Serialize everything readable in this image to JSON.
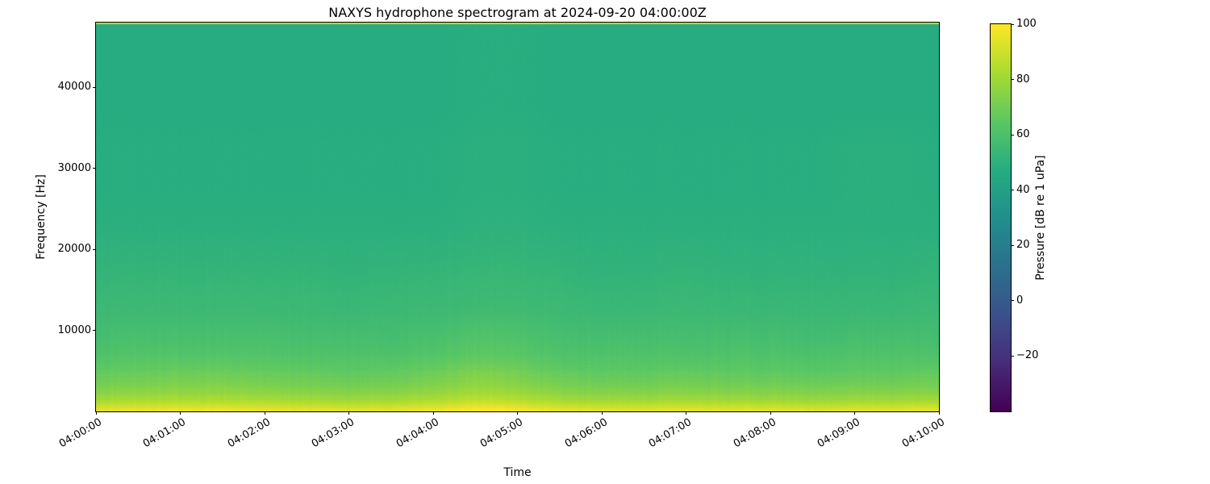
{
  "title": "NAXYS hydrophone spectrogram at 2024-09-20 04:00:00Z",
  "axes": {
    "xlabel": "Time",
    "ylabel": "Frequency [Hz]",
    "x_ticks": [
      "04:00:00",
      "04:01:00",
      "04:02:00",
      "04:03:00",
      "04:04:00",
      "04:05:00",
      "04:06:00",
      "04:07:00",
      "04:08:00",
      "04:09:00",
      "04:10:00"
    ],
    "y_ticks": {
      "values": [
        10000,
        20000,
        30000,
        40000
      ],
      "labels": [
        "10000",
        "20000",
        "30000",
        "40000"
      ]
    }
  },
  "colorbar": {
    "label": "Pressure [dB re 1 uPa]",
    "colormap": "viridis",
    "vmin": -40,
    "vmax": 100,
    "ticks": {
      "values": [
        100,
        80,
        60,
        40,
        20,
        0,
        -20
      ],
      "labels": [
        "100",
        "80",
        "60",
        "40",
        "20",
        "0",
        "−20"
      ]
    }
  },
  "chart_data": {
    "type": "heatmap",
    "subtype": "spectrogram",
    "title": "NAXYS hydrophone spectrogram at 2024-09-20 04:00:00Z",
    "xlabel": "Time",
    "ylabel": "Frequency [Hz]",
    "colormap": "viridis",
    "vmin": -40,
    "vmax": 100,
    "ylim": [
      0,
      48000
    ],
    "rows_order": "bottom-to-top",
    "top_edge_db": 86,
    "x": [
      "04:00:00",
      "04:00:30",
      "04:01:00",
      "04:01:30",
      "04:02:00",
      "04:02:30",
      "04:03:00",
      "04:03:30",
      "04:04:00",
      "04:04:30",
      "04:05:00",
      "04:05:30",
      "04:06:00",
      "04:06:30",
      "04:07:00",
      "04:07:30",
      "04:08:00",
      "04:08:30",
      "04:09:00",
      "04:09:30",
      "04:10:00"
    ],
    "y_hz": [
      250,
      750,
      1500,
      2500,
      3500,
      5000,
      7000,
      9000,
      12500,
      17500,
      22500,
      27500,
      32500,
      37500,
      42500,
      47500
    ],
    "values_db": [
      [
        94,
        95,
        96,
        96,
        95,
        94,
        93,
        94,
        96,
        100,
        98,
        94,
        93,
        93,
        94,
        93,
        93,
        92,
        93,
        93,
        94
      ],
      [
        87,
        88,
        89,
        89,
        88,
        87,
        86,
        87,
        89,
        93,
        91,
        87,
        86,
        86,
        87,
        86,
        86,
        85,
        86,
        86,
        87
      ],
      [
        80,
        81,
        82,
        82,
        81,
        80,
        79,
        80,
        82,
        86,
        84,
        80,
        79,
        79,
        80,
        79,
        79,
        78,
        79,
        79,
        80
      ],
      [
        74,
        75,
        76,
        76,
        75,
        74,
        73,
        74,
        76,
        80,
        78,
        74,
        73,
        73,
        74,
        73,
        73,
        72,
        73,
        73,
        74
      ],
      [
        70,
        71,
        72,
        72,
        71,
        70,
        69,
        70,
        72,
        76,
        74,
        70,
        69,
        69,
        70,
        69,
        69,
        68,
        69,
        69,
        70
      ],
      [
        66,
        67,
        68,
        68,
        67,
        66,
        65,
        66,
        68,
        72,
        70,
        66,
        65,
        65,
        66,
        65,
        65,
        64,
        65,
        65,
        66
      ],
      [
        61,
        62,
        62,
        62,
        62,
        61,
        61,
        61,
        62,
        65,
        64,
        61,
        61,
        61,
        61,
        61,
        61,
        60,
        61,
        61,
        61
      ],
      [
        58,
        59,
        59,
        59,
        59,
        58,
        58,
        58,
        59,
        62,
        61,
        58,
        58,
        58,
        58,
        58,
        58,
        57,
        58,
        58,
        58
      ],
      [
        55,
        55,
        55,
        55,
        55,
        55,
        54,
        55,
        55,
        56,
        56,
        55,
        54,
        54,
        55,
        54,
        54,
        54,
        54,
        54,
        55
      ],
      [
        52,
        52,
        52,
        52,
        52,
        52,
        51,
        52,
        52,
        53,
        53,
        52,
        51,
        51,
        52,
        51,
        51,
        51,
        51,
        51,
        52
      ],
      [
        49,
        49,
        49,
        49,
        49,
        49,
        49,
        49,
        49,
        50,
        50,
        49,
        49,
        49,
        49,
        49,
        49,
        49,
        49,
        49,
        49
      ],
      [
        48,
        48,
        48,
        48,
        48,
        48,
        48,
        48,
        48,
        49,
        49,
        48,
        48,
        48,
        48,
        48,
        48,
        48,
        49,
        49,
        48
      ],
      [
        48,
        48,
        48,
        48,
        48,
        48,
        48,
        48,
        48,
        49,
        49,
        48,
        48,
        48,
        48,
        48,
        48,
        48,
        49,
        49,
        48
      ],
      [
        47,
        47,
        47,
        47,
        47,
        47,
        47,
        47,
        47,
        48,
        48,
        47,
        47,
        47,
        47,
        47,
        47,
        47,
        47,
        47,
        47
      ],
      [
        47,
        47,
        47,
        47,
        47,
        47,
        47,
        47,
        47,
        48,
        48,
        47,
        47,
        47,
        47,
        47,
        47,
        47,
        47,
        47,
        47
      ],
      [
        47,
        47,
        47,
        47,
        47,
        47,
        47,
        47,
        47,
        48,
        48,
        47,
        47,
        47,
        47,
        47,
        47,
        47,
        47,
        47,
        47
      ]
    ]
  }
}
